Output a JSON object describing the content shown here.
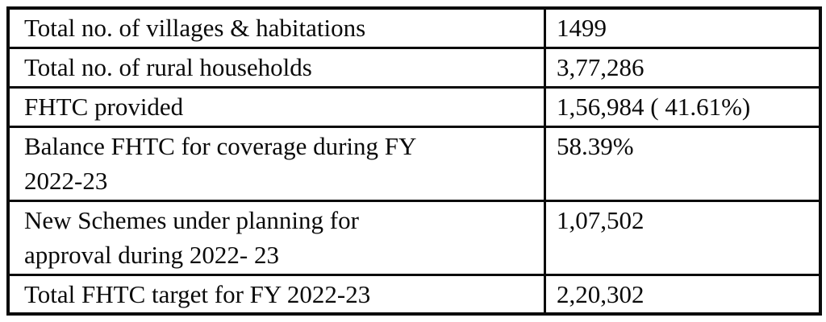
{
  "table": {
    "rows": [
      {
        "label": "Total no. of villages & habitations",
        "value": "1499"
      },
      {
        "label": "Total no. of rural households",
        "value": "3,77,286"
      },
      {
        "label": "FHTC provided",
        "value": "1,56,984 ( 41.61%)"
      },
      {
        "label": "Balance FHTC for coverage during FY\n2022-23",
        "value": "58.39%"
      },
      {
        "label": "New Schemes under planning for\napproval during 2022- 23",
        "value": "1,07,502"
      },
      {
        "label": "Total FHTC target for FY 2022-23",
        "value": "2,20,302"
      }
    ],
    "text_color": "#0a0a0a",
    "border_color": "#0a0a0a",
    "background_color": "#ffffff"
  }
}
